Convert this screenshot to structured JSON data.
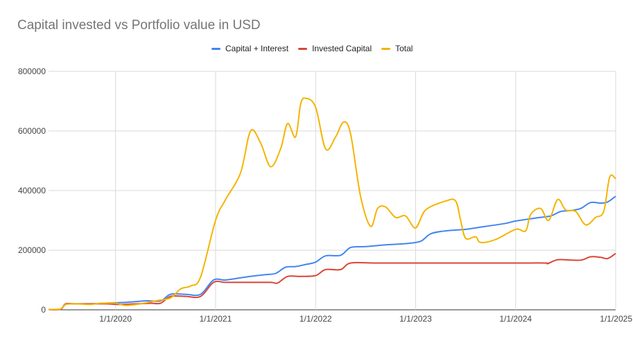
{
  "chart_data": {
    "type": "line",
    "title": "Capital invested vs Portfolio value in USD",
    "xlabel": "",
    "ylabel": "",
    "ylim": [
      0,
      800000
    ],
    "yticks": [
      0,
      200000,
      400000,
      600000,
      800000
    ],
    "ytick_labels": [
      "0",
      "200000",
      "400000",
      "600000",
      "800000"
    ],
    "xlim": [
      2019.33,
      2025.0
    ],
    "xticks": [
      2020,
      2021,
      2022,
      2023,
      2024,
      2025
    ],
    "xtick_labels": [
      "1/1/2020",
      "1/1/2021",
      "1/1/2022",
      "1/1/2023",
      "1/1/2024",
      "1/1/2025"
    ],
    "grid": true,
    "legend_position": "top",
    "series": [
      {
        "name": "Capital + Interest",
        "color": "#4285F4",
        "points": [
          [
            2019.33,
            1000
          ],
          [
            2019.45,
            2000
          ],
          [
            2019.5,
            18000
          ],
          [
            2019.6,
            20000
          ],
          [
            2019.75,
            20000
          ],
          [
            2019.9,
            22000
          ],
          [
            2020.1,
            25000
          ],
          [
            2020.3,
            30000
          ],
          [
            2020.45,
            30000
          ],
          [
            2020.55,
            52000
          ],
          [
            2020.7,
            52000
          ],
          [
            2020.85,
            52000
          ],
          [
            2020.98,
            100000
          ],
          [
            2021.1,
            100000
          ],
          [
            2021.3,
            110000
          ],
          [
            2021.5,
            118000
          ],
          [
            2021.6,
            122000
          ],
          [
            2021.7,
            143000
          ],
          [
            2021.8,
            145000
          ],
          [
            2021.9,
            152000
          ],
          [
            2022.0,
            160000
          ],
          [
            2022.1,
            181000
          ],
          [
            2022.25,
            183000
          ],
          [
            2022.35,
            209000
          ],
          [
            2022.5,
            212000
          ],
          [
            2022.7,
            218000
          ],
          [
            2022.9,
            222000
          ],
          [
            2023.05,
            230000
          ],
          [
            2023.15,
            255000
          ],
          [
            2023.3,
            265000
          ],
          [
            2023.5,
            270000
          ],
          [
            2023.7,
            280000
          ],
          [
            2023.9,
            290000
          ],
          [
            2024.0,
            298000
          ],
          [
            2024.2,
            308000
          ],
          [
            2024.35,
            315000
          ],
          [
            2024.45,
            330000
          ],
          [
            2024.55,
            333000
          ],
          [
            2024.65,
            340000
          ],
          [
            2024.75,
            360000
          ],
          [
            2024.85,
            358000
          ],
          [
            2024.92,
            362000
          ],
          [
            2025.0,
            381000
          ]
        ]
      },
      {
        "name": "Invested Capital",
        "color": "#DB4437",
        "points": [
          [
            2019.33,
            1000
          ],
          [
            2019.45,
            2000
          ],
          [
            2019.5,
            20000
          ],
          [
            2019.6,
            20000
          ],
          [
            2019.75,
            20000
          ],
          [
            2019.9,
            20000
          ],
          [
            2020.05,
            18000
          ],
          [
            2020.2,
            20000
          ],
          [
            2020.35,
            22000
          ],
          [
            2020.45,
            22000
          ],
          [
            2020.55,
            45000
          ],
          [
            2020.7,
            45000
          ],
          [
            2020.85,
            45000
          ],
          [
            2020.98,
            92000
          ],
          [
            2021.1,
            92000
          ],
          [
            2021.3,
            92000
          ],
          [
            2021.55,
            92000
          ],
          [
            2021.62,
            90000
          ],
          [
            2021.72,
            112000
          ],
          [
            2021.85,
            112000
          ],
          [
            2022.0,
            115000
          ],
          [
            2022.1,
            135000
          ],
          [
            2022.25,
            135000
          ],
          [
            2022.35,
            157000
          ],
          [
            2022.6,
            157000
          ],
          [
            2023.0,
            157000
          ],
          [
            2023.5,
            157000
          ],
          [
            2024.0,
            157000
          ],
          [
            2024.3,
            157000
          ],
          [
            2024.32,
            155000
          ],
          [
            2024.42,
            168000
          ],
          [
            2024.55,
            167000
          ],
          [
            2024.66,
            167000
          ],
          [
            2024.75,
            178000
          ],
          [
            2024.85,
            176000
          ],
          [
            2024.92,
            172000
          ],
          [
            2025.0,
            189000
          ]
        ]
      },
      {
        "name": "Total",
        "color": "#F4B400",
        "points": [
          [
            2019.33,
            1000
          ],
          [
            2019.45,
            3000
          ],
          [
            2019.5,
            18000
          ],
          [
            2019.6,
            20000
          ],
          [
            2019.75,
            18000
          ],
          [
            2019.85,
            22000
          ],
          [
            2020.0,
            22000
          ],
          [
            2020.1,
            15000
          ],
          [
            2020.25,
            20000
          ],
          [
            2020.4,
            30000
          ],
          [
            2020.55,
            40000
          ],
          [
            2020.65,
            70000
          ],
          [
            2020.75,
            80000
          ],
          [
            2020.85,
            110000
          ],
          [
            2021.0,
            300000
          ],
          [
            2021.1,
            370000
          ],
          [
            2021.25,
            460000
          ],
          [
            2021.35,
            600000
          ],
          [
            2021.45,
            560000
          ],
          [
            2021.55,
            480000
          ],
          [
            2021.65,
            540000
          ],
          [
            2021.72,
            625000
          ],
          [
            2021.8,
            580000
          ],
          [
            2021.85,
            690000
          ],
          [
            2021.9,
            710000
          ],
          [
            2022.0,
            680000
          ],
          [
            2022.1,
            540000
          ],
          [
            2022.2,
            580000
          ],
          [
            2022.28,
            630000
          ],
          [
            2022.35,
            590000
          ],
          [
            2022.45,
            380000
          ],
          [
            2022.55,
            280000
          ],
          [
            2022.62,
            340000
          ],
          [
            2022.7,
            345000
          ],
          [
            2022.8,
            310000
          ],
          [
            2022.9,
            315000
          ],
          [
            2023.0,
            275000
          ],
          [
            2023.1,
            335000
          ],
          [
            2023.3,
            365000
          ],
          [
            2023.4,
            365000
          ],
          [
            2023.45,
            300000
          ],
          [
            2023.5,
            240000
          ],
          [
            2023.6,
            245000
          ],
          [
            2023.65,
            226000
          ],
          [
            2023.8,
            236000
          ],
          [
            2024.0,
            270000
          ],
          [
            2024.1,
            265000
          ],
          [
            2024.15,
            320000
          ],
          [
            2024.25,
            340000
          ],
          [
            2024.33,
            300000
          ],
          [
            2024.42,
            370000
          ],
          [
            2024.5,
            335000
          ],
          [
            2024.6,
            330000
          ],
          [
            2024.7,
            285000
          ],
          [
            2024.8,
            310000
          ],
          [
            2024.88,
            330000
          ],
          [
            2024.94,
            445000
          ],
          [
            2025.0,
            440000
          ]
        ]
      }
    ]
  }
}
